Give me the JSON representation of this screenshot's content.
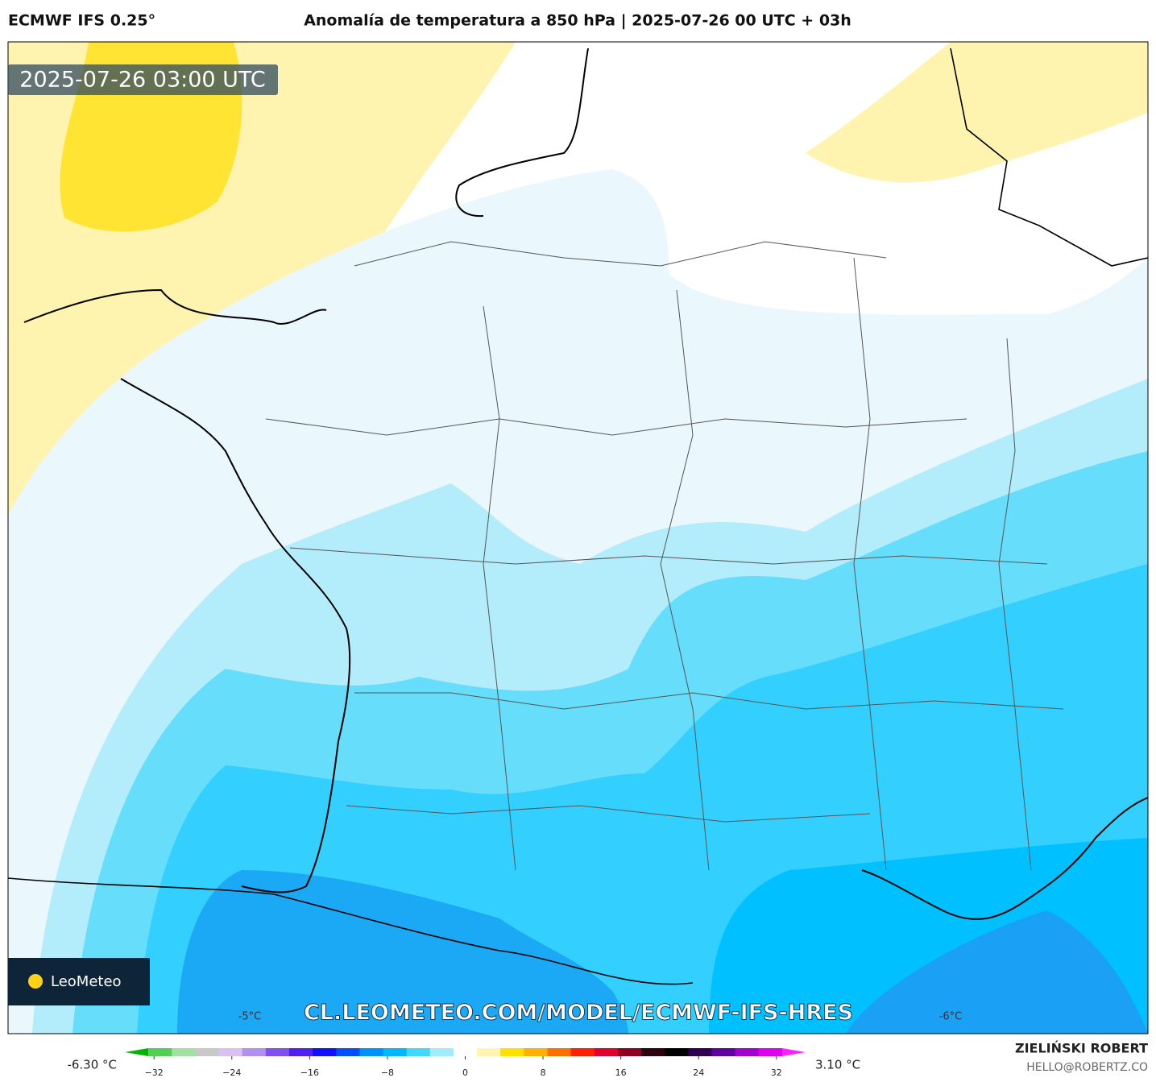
{
  "header": {
    "model": "ECMWF IFS 0.25°",
    "title": "Anomalía de temperatura a 850 hPa | 2025-07-26 00 UTC + 03h"
  },
  "map": {
    "valid_time": "2025-07-26 03:00 UTC",
    "logo": "LeoMeteo",
    "url": "CL.LEOMETEO.COM/MODEL/ECMWF-IFS-HRES",
    "labels": [
      "-5°C",
      "-6°C"
    ]
  },
  "colorbar": {
    "min_label": "-6.30 °C",
    "max_label": "3.10 °C",
    "range": [
      -35,
      35
    ],
    "ticks": [
      {
        "value": -32,
        "label": "−32"
      },
      {
        "value": -24,
        "label": "−24"
      },
      {
        "value": -16,
        "label": "−16"
      },
      {
        "value": -8,
        "label": "−8"
      },
      0,
      8,
      16,
      24,
      32
    ],
    "colors": [
      "#00b400",
      "#50d050",
      "#a0e0a0",
      "#c8c8c8",
      "#d8c0f0",
      "#b090f0",
      "#8050f0",
      "#5020f0",
      "#1010ff",
      "#0050ff",
      "#0090ff",
      "#00b8ff",
      "#40d8ff",
      "#a0ecff",
      "#ffffff",
      "#fff5b0",
      "#ffe000",
      "#ffb000",
      "#ff7000",
      "#ff2000",
      "#e00030",
      "#900020",
      "#300010",
      "#000000",
      "#300050",
      "#6000a0",
      "#a000d0",
      "#e000f0",
      "#ff20ff"
    ]
  },
  "credit": {
    "author": "ZIELIŃSKI ROBERT",
    "email": "HELLO@ROBERTZ.CO"
  }
}
